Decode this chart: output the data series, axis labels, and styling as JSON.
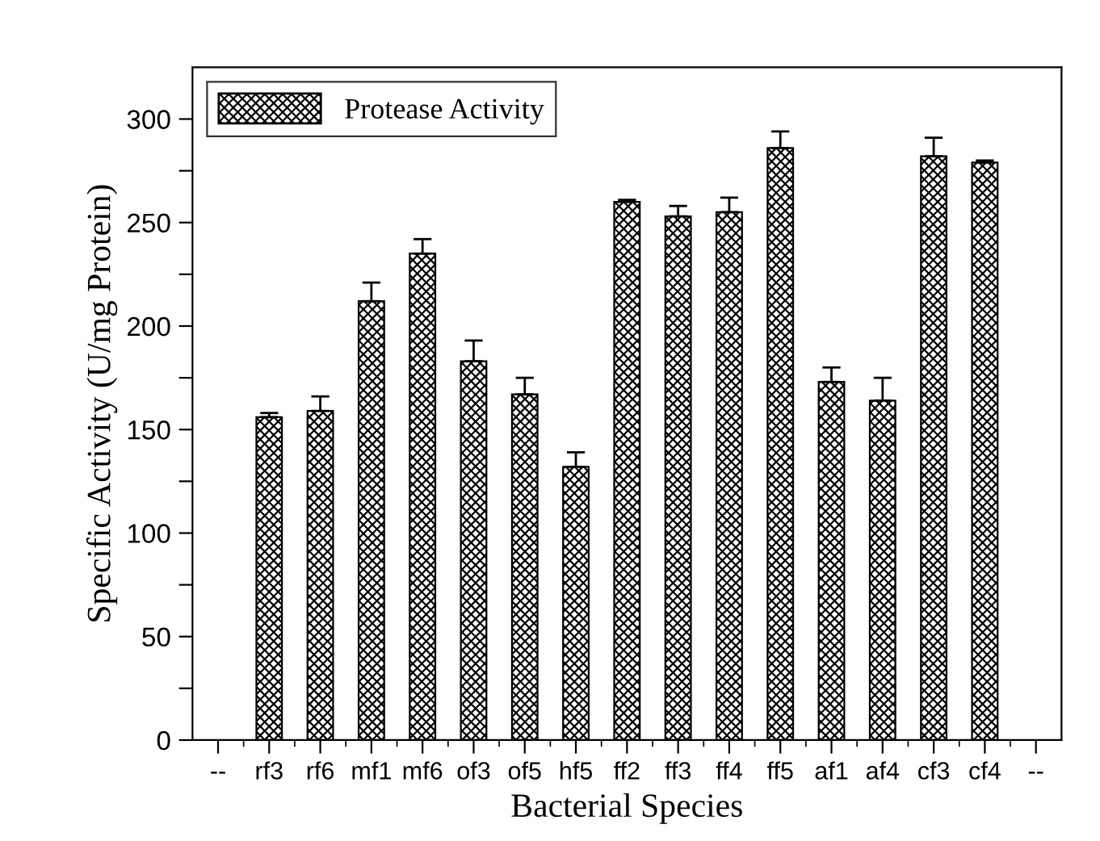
{
  "chart_data": {
    "type": "bar",
    "xlabel": "Bacterial Species",
    "ylabel": "Specific Activity (U/mg Protein)",
    "categories": [
      "--",
      "rf3",
      "rf6",
      "mf1",
      "mf6",
      "of3",
      "of5",
      "hf5",
      "ff2",
      "ff3",
      "ff4",
      "ff5",
      "af1",
      "af4",
      "cf3",
      "cf4",
      "--"
    ],
    "series": [
      {
        "name": "Protease Activity",
        "color": "#000000",
        "values": [
          null,
          156,
          159,
          212,
          235,
          183,
          167,
          132,
          260,
          253,
          255,
          286,
          173,
          164,
          282,
          279,
          null
        ],
        "errors": [
          null,
          [
            156,
            158
          ],
          [
            159,
            166
          ],
          [
            212,
            221
          ],
          [
            235,
            242
          ],
          [
            183,
            193
          ],
          [
            167,
            175
          ],
          [
            132,
            139
          ],
          [
            260,
            261
          ],
          [
            253,
            258
          ],
          [
            255,
            262
          ],
          [
            286,
            294
          ],
          [
            173,
            180
          ],
          [
            164,
            175
          ],
          [
            282,
            291
          ],
          [
            279,
            280
          ],
          null
        ]
      }
    ],
    "ylim": [
      0,
      325
    ],
    "yticks": [
      0,
      {
        "value": 25,
        "label": null
      },
      50,
      {
        "value": 75,
        "label": null
      },
      100,
      {
        "value": 125,
        "label": null
      },
      150,
      {
        "value": 175,
        "label": null
      },
      200,
      {
        "value": 225,
        "label": null
      },
      250,
      {
        "value": 275,
        "label": null
      },
      300
    ],
    "grid": false,
    "legend": "top left"
  }
}
